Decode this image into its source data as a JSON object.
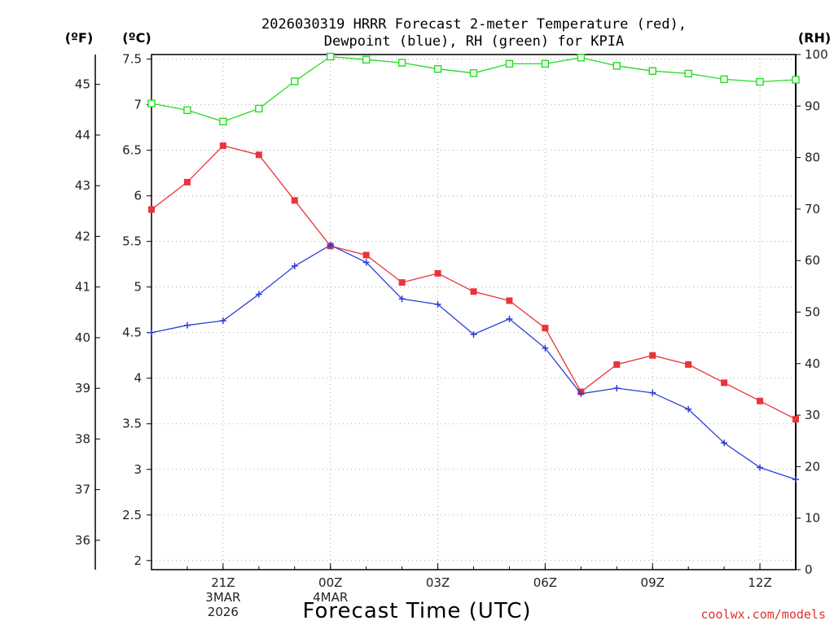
{
  "chart_data": {
    "type": "line",
    "title_line1": "2026030319 HRRR Forecast 2-meter Temperature (red),",
    "title_line2": "Dewpoint (blue), RH (green) for KPIA",
    "xlabel": "Forecast Time (UTC)",
    "units": {
      "left_f": "(ºF)",
      "left_c": "(ºC)",
      "right_rh": "(RH)"
    },
    "credit": "coolwx.com/models",
    "x_hours": [
      -2,
      -1,
      0,
      1,
      2,
      3,
      4,
      5,
      6,
      7,
      8,
      9,
      10,
      11,
      12,
      13,
      14,
      15,
      16
    ],
    "x_ticks": [
      {
        "hour": 0,
        "lines": [
          "21Z",
          "3MAR",
          "2026"
        ]
      },
      {
        "hour": 3,
        "lines": [
          "00Z",
          "4MAR"
        ]
      },
      {
        "hour": 6,
        "lines": [
          "03Z"
        ]
      },
      {
        "hour": 9,
        "lines": [
          "06Z"
        ]
      },
      {
        "hour": 12,
        "lines": [
          "09Z"
        ]
      },
      {
        "hour": 15,
        "lines": [
          "12Z"
        ]
      }
    ],
    "x_range": [
      -2,
      16
    ],
    "y_c_range": [
      1.9,
      7.55
    ],
    "y_c_ticks": [
      "2",
      "2.5",
      "3",
      "3.5",
      "4",
      "4.5",
      "5",
      "5.5",
      "6",
      "6.5",
      "7",
      "7.5"
    ],
    "y_f_ticks": [
      "36",
      "37",
      "38",
      "39",
      "40",
      "41",
      "42",
      "43",
      "44",
      "45"
    ],
    "y_rh_range": [
      0,
      100
    ],
    "y_rh_ticks": [
      "0",
      "10",
      "20",
      "30",
      "40",
      "50",
      "60",
      "70",
      "80",
      "90",
      "100"
    ],
    "series": [
      {
        "name": "Temperature",
        "axis": "c",
        "color": "#e8343a",
        "marker": "filled-square",
        "values": [
          5.85,
          6.15,
          6.55,
          6.45,
          5.95,
          5.45,
          5.35,
          5.05,
          5.15,
          4.95,
          4.85,
          4.55,
          3.85,
          4.15,
          4.25,
          4.15,
          3.95,
          3.75,
          3.55
        ]
      },
      {
        "name": "Dewpoint",
        "axis": "c",
        "color": "#2a3ed8",
        "marker": "plus",
        "values": [
          4.5,
          4.58,
          4.63,
          4.92,
          5.23,
          5.46,
          5.27,
          4.87,
          4.81,
          4.48,
          4.65,
          4.33,
          3.83,
          3.89,
          3.84,
          3.66,
          3.29,
          3.02,
          2.89
        ]
      },
      {
        "name": "RH",
        "axis": "rh",
        "color": "#22dd22",
        "marker": "open-square",
        "values": [
          90.5,
          89.2,
          87.0,
          89.5,
          94.8,
          99.6,
          99.0,
          98.4,
          97.2,
          96.4,
          98.2,
          98.2,
          99.4,
          97.8,
          96.8,
          96.3,
          95.2,
          94.7,
          95.1
        ]
      }
    ]
  }
}
